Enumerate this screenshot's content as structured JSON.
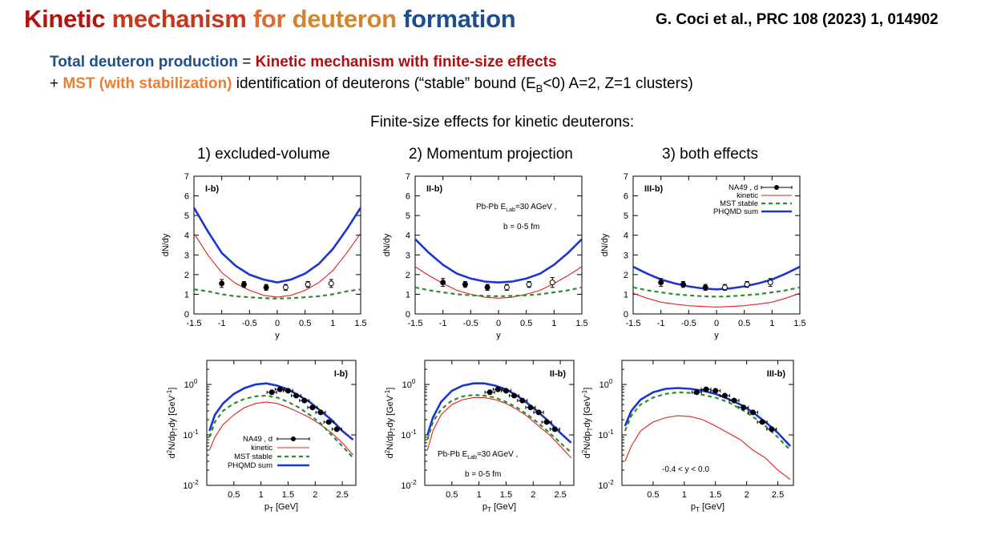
{
  "header": {
    "title_parts": [
      "Kinetic",
      " ",
      "mechanism",
      " ",
      "for",
      " ",
      "deuteron",
      " ",
      "formation"
    ],
    "title_colors": [
      "#b0160f",
      "#000",
      "#c6381b",
      "#000",
      "#e06a2a",
      "#000",
      "#d2852e",
      "#000",
      "#1f4e8c"
    ],
    "reference": "G. Coci et al., PRC 108 (2023) 1, 014902"
  },
  "summary": {
    "line1_blue": "Total deuteron production",
    "line1_eq": " = ",
    "line1_red": "Kinetic mechanism with finite-size effects",
    "line2_plus": "+ ",
    "line2_orange": "MST (with stabilization)",
    "line2_rest_a": " identification of deuterons (“stable” bound (E",
    "line2_sub": "B",
    "line2_rest_b": "<0) A=2, Z=1 clusters)"
  },
  "subtitle": "Finite-size effects for kinetic deuterons:",
  "columns": [
    "1) excluded-volume",
    "2) Momentum projection",
    "3) both effects"
  ],
  "legend_labels": {
    "na49": "NA49 , d",
    "kinetic": "kinetic",
    "mst": "MST stable",
    "phqmd": "PHQMD sum"
  },
  "annotations": {
    "system": "Pb-Pb E",
    "system_sub": "Lab",
    "system_rest": "=30 AGeV ,",
    "impact": "b = 0-5 fm",
    "rapidity_cut": "-0.4 < y < 0.0"
  },
  "colors": {
    "phqmd": "#1a35d0",
    "kinetic": "#e02020",
    "mst": "#2e8b2e",
    "data": "#000000"
  },
  "chart_data": [
    {
      "type": "line",
      "panel_label": "I-b)",
      "xlabel": "y",
      "ylabel": "dN/dy",
      "xlim": [
        -1.5,
        1.5
      ],
      "ylim": [
        0,
        7
      ],
      "xticks": [
        "-1.5",
        "-1",
        "-0.5",
        "0",
        "0.5",
        "1",
        "1.5"
      ],
      "yticks": [
        "0",
        "1",
        "2",
        "3",
        "4",
        "5",
        "6",
        "7"
      ],
      "x": [
        -1.5,
        -1.25,
        -1.0,
        -0.75,
        -0.5,
        -0.25,
        0,
        0.25,
        0.5,
        0.75,
        1.0,
        1.25,
        1.5
      ],
      "series": [
        {
          "name": "PHQMD sum",
          "key": "phqmd",
          "values": [
            5.4,
            4.2,
            3.1,
            2.45,
            2.0,
            1.75,
            1.6,
            1.75,
            2.05,
            2.55,
            3.3,
            4.3,
            5.4
          ]
        },
        {
          "name": "kinetic",
          "key": "kinetic",
          "values": [
            4.1,
            3.0,
            2.1,
            1.55,
            1.2,
            0.95,
            0.85,
            0.95,
            1.2,
            1.6,
            2.2,
            3.1,
            4.1
          ]
        },
        {
          "name": "MST stable",
          "key": "mst",
          "values": [
            1.25,
            1.15,
            1.0,
            0.9,
            0.85,
            0.8,
            0.78,
            0.8,
            0.85,
            0.9,
            1.0,
            1.15,
            1.25
          ]
        }
      ],
      "points": [
        {
          "name": "NA49 , d",
          "x": [
            -1.0,
            -0.6,
            -0.2,
            0.15,
            0.55,
            0.97
          ],
          "y": [
            1.55,
            1.5,
            1.35,
            1.35,
            1.5,
            1.55
          ],
          "err": [
            0.2,
            0.15,
            0.15,
            0.15,
            0.15,
            0.2
          ],
          "open": [
            false,
            false,
            false,
            true,
            true,
            true
          ]
        }
      ]
    },
    {
      "type": "line",
      "panel_label": "II-b)",
      "xlabel": "y",
      "ylabel": "dN/dy",
      "xlim": [
        -1.5,
        1.5
      ],
      "ylim": [
        0,
        7
      ],
      "xticks": [
        "-1.5",
        "-1",
        "-0.5",
        "0",
        "0.5",
        "1",
        "1.5"
      ],
      "yticks": [
        "0",
        "1",
        "2",
        "3",
        "4",
        "5",
        "6",
        "7"
      ],
      "x": [
        -1.5,
        -1.25,
        -1.0,
        -0.75,
        -0.5,
        -0.25,
        0,
        0.25,
        0.5,
        0.75,
        1.0,
        1.25,
        1.5
      ],
      "series": [
        {
          "name": "PHQMD sum",
          "key": "phqmd",
          "values": [
            3.8,
            3.1,
            2.5,
            2.05,
            1.8,
            1.65,
            1.6,
            1.65,
            1.8,
            2.05,
            2.5,
            3.1,
            3.8
          ]
        },
        {
          "name": "kinetic",
          "key": "kinetic",
          "values": [
            2.4,
            1.95,
            1.55,
            1.2,
            1.0,
            0.85,
            0.8,
            0.85,
            1.0,
            1.2,
            1.55,
            1.95,
            2.4
          ]
        },
        {
          "name": "MST stable",
          "key": "mst",
          "values": [
            1.35,
            1.2,
            1.1,
            1.0,
            0.95,
            0.92,
            0.9,
            0.92,
            0.95,
            1.0,
            1.1,
            1.2,
            1.35
          ]
        }
      ],
      "points": [
        {
          "name": "NA49 , d",
          "x": [
            -1.0,
            -0.6,
            -0.2,
            0.15,
            0.55,
            0.97
          ],
          "y": [
            1.6,
            1.5,
            1.35,
            1.35,
            1.5,
            1.6
          ],
          "err": [
            0.2,
            0.15,
            0.15,
            0.15,
            0.15,
            0.25
          ],
          "open": [
            false,
            false,
            false,
            true,
            true,
            true
          ]
        }
      ]
    },
    {
      "type": "line",
      "panel_label": "III-b)",
      "xlabel": "y",
      "ylabel": "dN/dy",
      "xlim": [
        -1.5,
        1.5
      ],
      "ylim": [
        0,
        7
      ],
      "xticks": [
        "-1.5",
        "-1",
        "-0.5",
        "0",
        "0.5",
        "1",
        "1.5"
      ],
      "yticks": [
        "0",
        "1",
        "2",
        "3",
        "4",
        "5",
        "6",
        "7"
      ],
      "x": [
        -1.5,
        -1.25,
        -1.0,
        -0.75,
        -0.5,
        -0.25,
        0,
        0.25,
        0.5,
        0.75,
        1.0,
        1.25,
        1.5
      ],
      "series": [
        {
          "name": "PHQMD sum",
          "key": "phqmd",
          "values": [
            2.4,
            2.05,
            1.75,
            1.55,
            1.4,
            1.3,
            1.25,
            1.3,
            1.4,
            1.55,
            1.75,
            2.05,
            2.4
          ]
        },
        {
          "name": "kinetic",
          "key": "kinetic",
          "values": [
            1.05,
            0.8,
            0.6,
            0.5,
            0.42,
            0.38,
            0.35,
            0.38,
            0.42,
            0.5,
            0.6,
            0.8,
            1.05
          ]
        },
        {
          "name": "MST stable",
          "key": "mst",
          "values": [
            1.35,
            1.2,
            1.1,
            1.0,
            0.95,
            0.9,
            0.88,
            0.9,
            0.95,
            1.0,
            1.1,
            1.2,
            1.35
          ]
        }
      ],
      "points": [
        {
          "name": "NA49 , d",
          "x": [
            -1.0,
            -0.6,
            -0.2,
            0.15,
            0.55,
            0.97
          ],
          "y": [
            1.6,
            1.5,
            1.35,
            1.35,
            1.5,
            1.6
          ],
          "err": [
            0.2,
            0.15,
            0.15,
            0.15,
            0.15,
            0.2
          ],
          "open": [
            false,
            false,
            false,
            true,
            true,
            true
          ]
        }
      ]
    },
    {
      "type": "line",
      "log_y": true,
      "panel_label": "I-b)",
      "xlabel": "pT [GeV]",
      "ylabel": "d2N/dpTdy [GeV-1]",
      "xlim": [
        0,
        2.75
      ],
      "ylim": [
        0.01,
        3
      ],
      "xticks": [
        "0.5",
        "1",
        "1.5",
        "2",
        "2.5"
      ],
      "yticks": [
        "10-2",
        "10-1",
        "100"
      ],
      "x": [
        0.05,
        0.15,
        0.3,
        0.5,
        0.7,
        0.9,
        1.1,
        1.3,
        1.5,
        1.7,
        1.9,
        2.1,
        2.3,
        2.5,
        2.7
      ],
      "series": [
        {
          "name": "PHQMD sum",
          "key": "phqmd",
          "values": [
            0.12,
            0.25,
            0.42,
            0.65,
            0.85,
            1.0,
            1.05,
            0.95,
            0.8,
            0.6,
            0.45,
            0.3,
            0.2,
            0.12,
            0.08
          ]
        },
        {
          "name": "kinetic",
          "key": "kinetic",
          "values": [
            0.05,
            0.09,
            0.16,
            0.25,
            0.35,
            0.42,
            0.45,
            0.42,
            0.35,
            0.28,
            0.22,
            0.16,
            0.11,
            0.07,
            0.04
          ]
        },
        {
          "name": "MST stable",
          "key": "mst",
          "values": [
            0.09,
            0.18,
            0.3,
            0.42,
            0.52,
            0.58,
            0.6,
            0.55,
            0.45,
            0.35,
            0.25,
            0.17,
            0.1,
            0.06,
            0.035
          ]
        }
      ],
      "points": [
        {
          "name": "NA49 , d",
          "x": [
            1.2,
            1.35,
            1.5,
            1.65,
            1.8,
            1.95,
            2.1,
            2.25,
            2.4
          ],
          "y": [
            0.7,
            0.8,
            0.75,
            0.6,
            0.48,
            0.35,
            0.28,
            0.18,
            0.13
          ],
          "open": [
            false,
            false,
            false,
            false,
            false,
            false,
            false,
            false,
            false
          ]
        }
      ]
    },
    {
      "type": "line",
      "log_y": true,
      "panel_label": "II-b)",
      "xlabel": "pT [GeV]",
      "ylabel": "d2N/dpTdy [GeV-1]",
      "xlim": [
        0,
        2.75
      ],
      "ylim": [
        0.01,
        3
      ],
      "xticks": [
        "0.5",
        "1",
        "1.5",
        "2",
        "2.5"
      ],
      "yticks": [
        "10-2",
        "10-1",
        "100"
      ],
      "x": [
        0.05,
        0.15,
        0.3,
        0.5,
        0.7,
        0.9,
        1.1,
        1.3,
        1.5,
        1.7,
        1.9,
        2.1,
        2.3,
        2.5,
        2.7
      ],
      "series": [
        {
          "name": "PHQMD sum",
          "key": "phqmd",
          "values": [
            0.1,
            0.22,
            0.45,
            0.75,
            0.95,
            1.05,
            1.05,
            0.95,
            0.8,
            0.6,
            0.42,
            0.28,
            0.18,
            0.11,
            0.07
          ]
        },
        {
          "name": "kinetic",
          "key": "kinetic",
          "values": [
            0.05,
            0.12,
            0.25,
            0.4,
            0.5,
            0.55,
            0.55,
            0.5,
            0.42,
            0.32,
            0.23,
            0.15,
            0.1,
            0.06,
            0.035
          ]
        },
        {
          "name": "MST stable",
          "key": "mst",
          "values": [
            0.08,
            0.18,
            0.32,
            0.48,
            0.58,
            0.62,
            0.6,
            0.55,
            0.45,
            0.35,
            0.25,
            0.17,
            0.11,
            0.07,
            0.045
          ]
        }
      ],
      "points": [
        {
          "name": "NA49 , d",
          "x": [
            1.2,
            1.35,
            1.5,
            1.65,
            1.8,
            1.95,
            2.1,
            2.25,
            2.4
          ],
          "y": [
            0.7,
            0.8,
            0.75,
            0.6,
            0.48,
            0.35,
            0.28,
            0.18,
            0.13
          ],
          "open": [
            false,
            false,
            false,
            false,
            false,
            false,
            false,
            false,
            false
          ]
        }
      ]
    },
    {
      "type": "line",
      "log_y": true,
      "panel_label": "III-b)",
      "xlabel": "pT [GeV]",
      "ylabel": "d2N/dpTdy [GeV-1]",
      "xlim": [
        0,
        2.75
      ],
      "ylim": [
        0.01,
        3
      ],
      "xticks": [
        "0.5",
        "1",
        "1.5",
        "2",
        "2.5"
      ],
      "yticks": [
        "10-2",
        "10-1",
        "100"
      ],
      "x": [
        0.05,
        0.15,
        0.3,
        0.5,
        0.7,
        0.9,
        1.1,
        1.3,
        1.5,
        1.7,
        1.9,
        2.1,
        2.3,
        2.5,
        2.7
      ],
      "series": [
        {
          "name": "PHQMD sum",
          "key": "phqmd",
          "values": [
            0.15,
            0.3,
            0.5,
            0.7,
            0.82,
            0.85,
            0.82,
            0.75,
            0.65,
            0.52,
            0.4,
            0.28,
            0.18,
            0.11,
            0.06
          ]
        },
        {
          "name": "kinetic",
          "key": "kinetic",
          "values": [
            0.03,
            0.06,
            0.12,
            0.18,
            0.22,
            0.24,
            0.23,
            0.2,
            0.15,
            0.11,
            0.08,
            0.05,
            0.035,
            0.02,
            0.013
          ]
        },
        {
          "name": "MST stable",
          "key": "mst",
          "values": [
            0.12,
            0.24,
            0.4,
            0.55,
            0.65,
            0.7,
            0.68,
            0.62,
            0.55,
            0.45,
            0.33,
            0.23,
            0.15,
            0.09,
            0.05
          ]
        }
      ],
      "points": [
        {
          "name": "NA49 , d",
          "x": [
            1.2,
            1.35,
            1.5,
            1.65,
            1.8,
            1.95,
            2.1,
            2.25,
            2.4
          ],
          "y": [
            0.7,
            0.8,
            0.75,
            0.6,
            0.48,
            0.35,
            0.28,
            0.18,
            0.13
          ],
          "open": [
            false,
            false,
            false,
            false,
            false,
            false,
            false,
            false,
            false
          ]
        }
      ]
    }
  ]
}
